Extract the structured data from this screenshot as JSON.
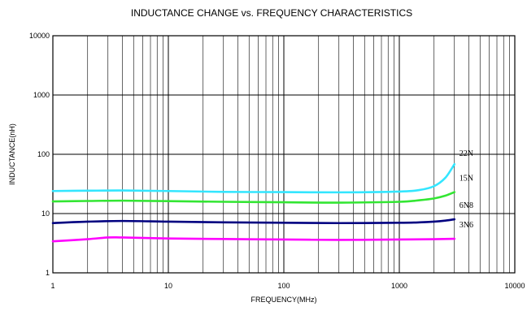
{
  "chart_data": {
    "type": "line",
    "title": "INDUCTANCE CHANGE vs. FREQUENCY CHARACTERISTICS",
    "xlabel": "FREQUENCY(MHz)",
    "ylabel": "INDUCTANCE(nH)",
    "x_scale": "log",
    "y_scale": "log",
    "xlim": [
      1,
      10000
    ],
    "ylim": [
      1,
      10000
    ],
    "x_ticks": [
      "1",
      "10",
      "100",
      "1000",
      "10000"
    ],
    "y_ticks": [
      "1",
      "10",
      "100",
      "1000",
      "10000"
    ],
    "grid": true,
    "legend": "inline labels at right end of each curve",
    "series": [
      {
        "name": "22N",
        "color": "#33e6ff",
        "points": [
          [
            1,
            24
          ],
          [
            2,
            24.3
          ],
          [
            4,
            24.5
          ],
          [
            10,
            24
          ],
          [
            30,
            23.2
          ],
          [
            100,
            23
          ],
          [
            300,
            22.8
          ],
          [
            1000,
            23.5
          ],
          [
            1500,
            25
          ],
          [
            2000,
            29
          ],
          [
            2500,
            40
          ],
          [
            3000,
            68
          ]
        ]
      },
      {
        "name": "15N",
        "color": "#33e633",
        "points": [
          [
            1,
            16
          ],
          [
            2,
            16.3
          ],
          [
            4,
            16.5
          ],
          [
            10,
            16.2
          ],
          [
            30,
            15.8
          ],
          [
            100,
            15.5
          ],
          [
            300,
            15.3
          ],
          [
            1000,
            15.8
          ],
          [
            1500,
            16.8
          ],
          [
            2000,
            18
          ],
          [
            2500,
            20
          ],
          [
            3000,
            23
          ]
        ]
      },
      {
        "name": "6N8",
        "color": "#000080",
        "points": [
          [
            1,
            6.9
          ],
          [
            2,
            7.3
          ],
          [
            4,
            7.5
          ],
          [
            10,
            7.3
          ],
          [
            30,
            7.1
          ],
          [
            100,
            7.0
          ],
          [
            300,
            6.9
          ],
          [
            1000,
            7.0
          ],
          [
            1500,
            7.1
          ],
          [
            2000,
            7.3
          ],
          [
            2500,
            7.6
          ],
          [
            3000,
            8.0
          ]
        ]
      },
      {
        "name": "3N6",
        "color": "#ff00ff",
        "points": [
          [
            1,
            3.4
          ],
          [
            2,
            3.7
          ],
          [
            3,
            3.95
          ],
          [
            4,
            3.95
          ],
          [
            10,
            3.8
          ],
          [
            30,
            3.72
          ],
          [
            100,
            3.65
          ],
          [
            300,
            3.6
          ],
          [
            1000,
            3.65
          ],
          [
            2000,
            3.7
          ],
          [
            3000,
            3.75
          ]
        ]
      }
    ]
  }
}
